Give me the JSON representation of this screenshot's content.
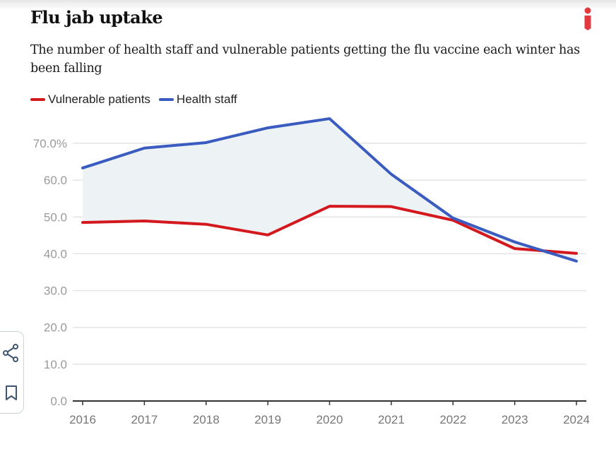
{
  "header": {
    "title": "Flu jab uptake",
    "subtitle": "The number of health staff and vulnerable patients getting the flu vaccine each winter has been falling",
    "logo_icon": "independent-i-logo-icon",
    "logo_color": "#e0393e"
  },
  "legend": [
    {
      "label": "Vulnerable patients",
      "color": "#d3181e"
    },
    {
      "label": "Health staff",
      "color": "#3a5bbf"
    }
  ],
  "sidebar": {
    "share_icon": "share-icon",
    "bookmark_icon": "bookmark-icon"
  },
  "chart_data": {
    "type": "line",
    "title": "Flu jab uptake",
    "subtitle": "The number of health staff and vulnerable patients getting the flu vaccine each winter has been falling",
    "xlabel": "",
    "ylabel": "",
    "x": [
      "2016",
      "2017",
      "2018",
      "2019",
      "2020",
      "2021",
      "2022",
      "2023",
      "2024"
    ],
    "ylim": [
      0,
      70
    ],
    "yticks": [
      0,
      10,
      20,
      30,
      40,
      50,
      60,
      70
    ],
    "ytick_labels": [
      "0.0",
      "10.0",
      "20.0",
      "30.0",
      "40.0",
      "50.0",
      "60.0",
      "70.0%"
    ],
    "grid": true,
    "legend_position": "top-left",
    "shaded_area_between_series": true,
    "area_fill_color": "#edf2f5",
    "series": [
      {
        "name": "Vulnerable patients",
        "color": "#d3181e",
        "values": [
          48.5,
          48.9,
          48.0,
          45.1,
          52.9,
          52.8,
          49.1,
          41.4,
          40.1
        ]
      },
      {
        "name": "Health staff",
        "color": "#3a5bbf",
        "values": [
          63.3,
          68.7,
          70.2,
          74.2,
          76.7,
          61.6,
          49.7,
          43.2,
          38.0
        ]
      }
    ]
  }
}
